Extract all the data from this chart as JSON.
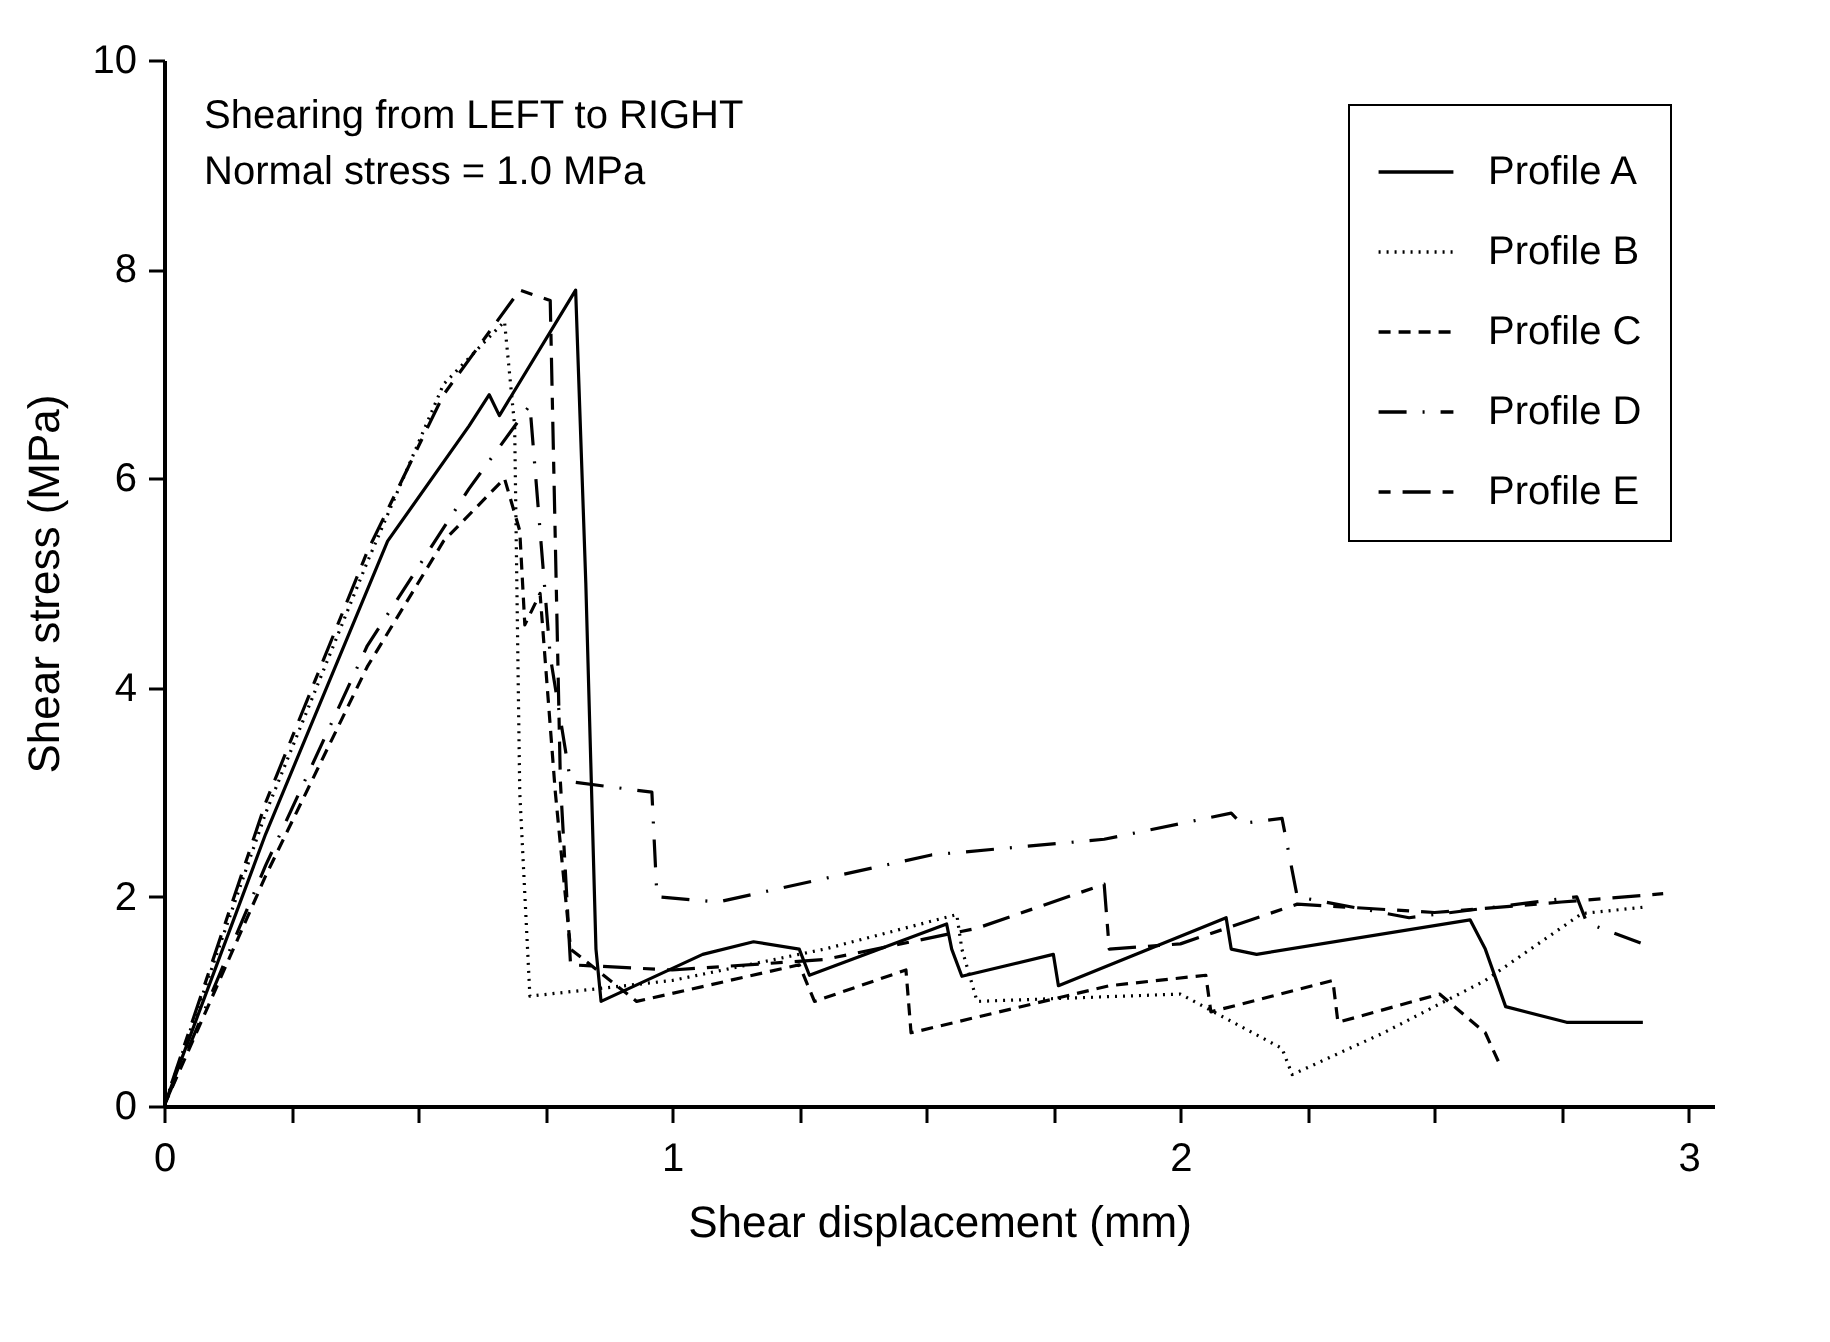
{
  "chart_data": {
    "type": "line",
    "xlabel": "Shear displacement (mm)",
    "ylabel": "Shear stress (MPa)",
    "annotations": [
      "Shearing from LEFT to RIGHT",
      "Normal stress = 1.0 MPa"
    ],
    "xlim": [
      0,
      3.05
    ],
    "ylim": [
      0,
      10
    ],
    "xticks": [
      0,
      {
        "value": 0.25,
        "label": null
      },
      {
        "value": 0.5,
        "label": null
      },
      {
        "value": 0.75,
        "label": null
      },
      1,
      {
        "value": 1.25,
        "label": null
      },
      {
        "value": 1.5,
        "label": null
      },
      {
        "value": 1.75,
        "label": null
      },
      2,
      {
        "value": 2.25,
        "label": null
      },
      {
        "value": 2.5,
        "label": null
      },
      {
        "value": 2.75,
        "label": null
      },
      3
    ],
    "yticks": [
      0,
      2,
      4,
      6,
      8,
      10
    ],
    "grid": false,
    "legend": "top right",
    "marker": "none",
    "series": [
      {
        "name": "Profile A",
        "color": "#000000",
        "line_style": "solid",
        "x": [
          0,
          0.2,
          0.44,
          0.6,
          0.64,
          0.66,
          0.81,
          0.83,
          0.85,
          0.86,
          1.06,
          1.16,
          1.25,
          1.27,
          1.54,
          1.55,
          1.57,
          1.75,
          1.76,
          2.09,
          2.1,
          2.15,
          2.57,
          2.6,
          2.64,
          2.76,
          2.91
        ],
        "values": [
          0,
          2.6,
          5.4,
          6.5,
          6.8,
          6.6,
          7.8,
          5.0,
          1.5,
          1.0,
          1.45,
          1.57,
          1.5,
          1.25,
          1.74,
          1.5,
          1.24,
          1.45,
          1.15,
          1.8,
          1.5,
          1.45,
          1.78,
          1.5,
          0.95,
          0.8,
          0.8
        ]
      },
      {
        "name": "Profile B",
        "color": "#000000",
        "line_style": "dotted",
        "x": [
          0,
          0.2,
          0.4,
          0.55,
          0.67,
          0.69,
          0.7,
          0.72,
          1.0,
          1.3,
          1.56,
          1.57,
          1.6,
          2.0,
          2.2,
          2.22,
          2.4,
          2.6,
          2.79,
          2.91
        ],
        "values": [
          0,
          2.8,
          5.2,
          6.9,
          7.5,
          6.5,
          3.0,
          1.05,
          1.2,
          1.5,
          1.83,
          1.5,
          1.0,
          1.07,
          0.55,
          0.3,
          0.7,
          1.2,
          1.84,
          1.9
        ]
      },
      {
        "name": "Profile C",
        "color": "#000000",
        "line_style": "dashed",
        "x": [
          0,
          0.2,
          0.4,
          0.55,
          0.67,
          0.7,
          0.71,
          0.74,
          0.77,
          0.8,
          0.93,
          1.25,
          1.28,
          1.46,
          1.47,
          1.86,
          2.05,
          2.06,
          2.3,
          2.31,
          2.51,
          2.6,
          2.63
        ],
        "values": [
          0,
          2.2,
          4.2,
          5.4,
          6.0,
          5.5,
          4.6,
          4.9,
          3.0,
          1.5,
          1.0,
          1.35,
          1.0,
          1.3,
          0.7,
          1.15,
          1.25,
          0.9,
          1.2,
          0.8,
          1.07,
          0.7,
          0.38
        ]
      },
      {
        "name": "Profile D",
        "color": "#000000",
        "line_style": "dashdot",
        "x": [
          0,
          0.2,
          0.4,
          0.6,
          0.72,
          0.74,
          0.76,
          0.8,
          0.96,
          0.97,
          1.09,
          1.51,
          1.85,
          2.1,
          2.12,
          2.2,
          2.23,
          2.45,
          2.78,
          2.8,
          2.91
        ],
        "values": [
          0,
          2.3,
          4.4,
          5.9,
          6.7,
          5.5,
          4.3,
          3.1,
          3.0,
          2.0,
          1.95,
          2.4,
          2.55,
          2.8,
          2.7,
          2.75,
          2.0,
          1.8,
          2.0,
          1.75,
          1.55
        ]
      },
      {
        "name": "Profile E",
        "color": "#000000",
        "line_style": "longdash",
        "x": [
          0,
          0.2,
          0.4,
          0.55,
          0.7,
          0.76,
          0.78,
          0.8,
          1.0,
          1.3,
          1.6,
          1.85,
          1.86,
          2.0,
          2.23,
          2.5,
          2.75,
          2.95
        ],
        "values": [
          0,
          2.9,
          5.3,
          6.8,
          7.8,
          7.7,
          3.1,
          1.35,
          1.3,
          1.4,
          1.7,
          2.12,
          1.5,
          1.55,
          1.93,
          1.85,
          1.95,
          2.03
        ]
      }
    ]
  }
}
